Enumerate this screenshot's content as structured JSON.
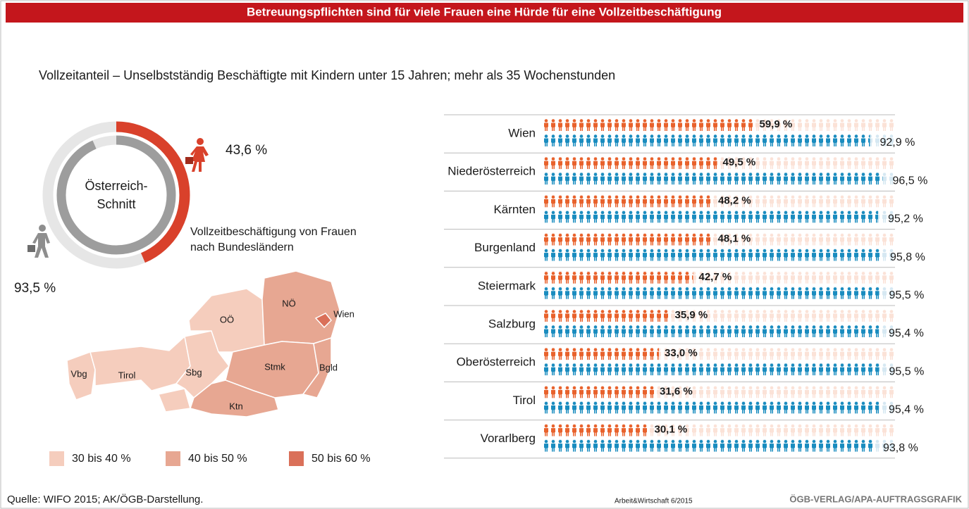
{
  "header": {
    "title": "Betreuungspflichten sind für viele Frauen eine Hürde für eine Vollzeitbeschäftigung"
  },
  "subtitle": "Vollzeitanteil – Unselbstständig Beschäftigte mit Kindern unter 15 Jahren; mehr als 35 Wochenstunden",
  "footer": {
    "source": "Quelle: WIFO 2015; AK/ÖGB-Darstellung.",
    "publication": "Arbeit&Wirtschaft 6/2015",
    "credit": "ÖGB-VERLAG/APA-AUFTRAGSGRAFIK"
  },
  "chart_data": [
    {
      "type": "donut",
      "center_label": [
        "Österreich-",
        "Schnitt"
      ],
      "values": [
        43.6,
        93.5
      ],
      "value_labels": [
        "43,6 %",
        "93,5 %"
      ],
      "colors": [
        "#d9412b",
        "#9d9d9d"
      ],
      "ylim": [
        0,
        100
      ]
    },
    {
      "type": "pictogram",
      "categories": [
        "Wien",
        "Niederösterreich",
        "Kärnten",
        "Burgenland",
        "Steiermark",
        "Salzburg",
        "Oberösterreich",
        "Tirol",
        "Vorarlberg"
      ],
      "series": [
        {
          "color": "#e8622c",
          "values": [
            59.9,
            49.5,
            48.2,
            48.1,
            42.7,
            35.9,
            33.0,
            31.6,
            30.1
          ],
          "value_labels": [
            "59,9 %",
            "49,5 %",
            "48,2 %",
            "48,1 %",
            "42,7 %",
            "35,9 %",
            "33,0 %",
            "31,6 %",
            "30,1 %"
          ]
        },
        {
          "color": "#1a8cbf",
          "values": [
            92.9,
            96.5,
            95.2,
            95.8,
            95.5,
            95.4,
            95.5,
            95.4,
            93.8
          ],
          "value_labels": [
            "92,9 %",
            "96,5 %",
            "95,2 %",
            "95,8 %",
            "95,5 %",
            "95,4 %",
            "95,5 %",
            "95,4 %",
            "93,8 %"
          ]
        }
      ],
      "xlim": [
        0,
        100
      ]
    },
    {
      "type": "map",
      "title": [
        "Vollzeitbeschäftigung von Frauen",
        "nach Bundesländern"
      ],
      "legend": [
        {
          "label": "30 bis 40 %",
          "color": "#f5cdbd"
        },
        {
          "label": "40 bis 50 %",
          "color": "#e7a792"
        },
        {
          "label": "50 bis 60 %",
          "color": "#da7059"
        }
      ],
      "regions": [
        {
          "label": "Vbg",
          "color": "#f5cdbd"
        },
        {
          "label": "Tirol",
          "color": "#f5cdbd"
        },
        {
          "label": "Sbg",
          "color": "#f5cdbd"
        },
        {
          "label": "OÖ",
          "color": "#f5cdbd"
        },
        {
          "label": "NÖ",
          "color": "#e7a792"
        },
        {
          "label": "Wien",
          "color": "#da7059"
        },
        {
          "label": "Stmk",
          "color": "#e7a792"
        },
        {
          "label": "Bgld",
          "color": "#e7a792"
        },
        {
          "label": "Ktn",
          "color": "#e7a792"
        }
      ]
    }
  ]
}
